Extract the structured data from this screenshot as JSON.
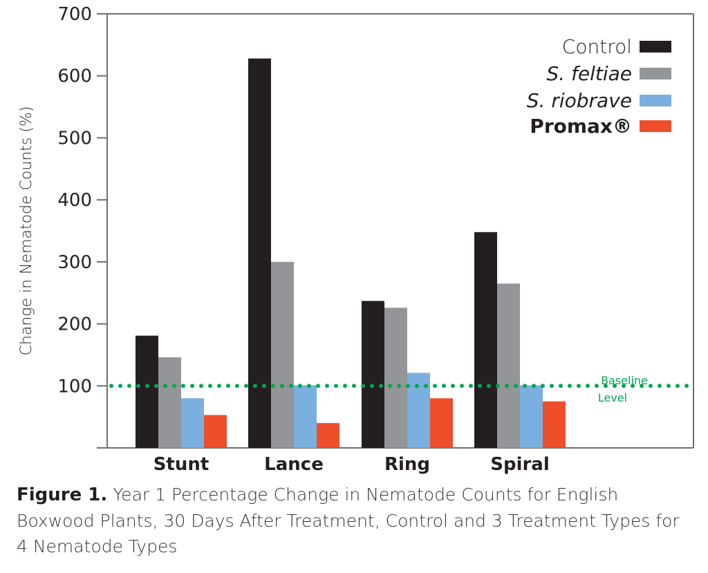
{
  "chart_data": {
    "type": "bar",
    "categories": [
      "Stunt",
      "Lance",
      "Ring",
      "Spiral"
    ],
    "series": [
      {
        "name": "Control",
        "color": "#231f20",
        "values": [
          181,
          628,
          237,
          348
        ]
      },
      {
        "name": "S. feltiae",
        "color": "#939598",
        "values": [
          146,
          300,
          226,
          265
        ]
      },
      {
        "name": "S. riobrave",
        "color": "#7aafdf",
        "values": [
          80,
          101,
          121,
          101
        ]
      },
      {
        "name": "Promax®",
        "color": "#ef4e2a",
        "values": [
          53,
          40,
          80,
          75
        ]
      }
    ],
    "ylabel": "Change in Nematode Counts (%)",
    "xlabel": "",
    "ylim": [
      0,
      700
    ],
    "yticks": [
      100,
      200,
      300,
      400,
      500,
      600,
      700
    ],
    "grid": false,
    "legend": "top-right",
    "baseline": {
      "value": 100,
      "label_line1": "Baseline",
      "label_line2": "Level",
      "color": "#00a651"
    }
  },
  "caption": {
    "label": "Figure 1.",
    "text": "Year 1 Percentage Change in Nematode Counts for English Boxwood Plants, 30 Days After Treatment, Control and 3 Treatment Types for 4 Nematode Types"
  }
}
